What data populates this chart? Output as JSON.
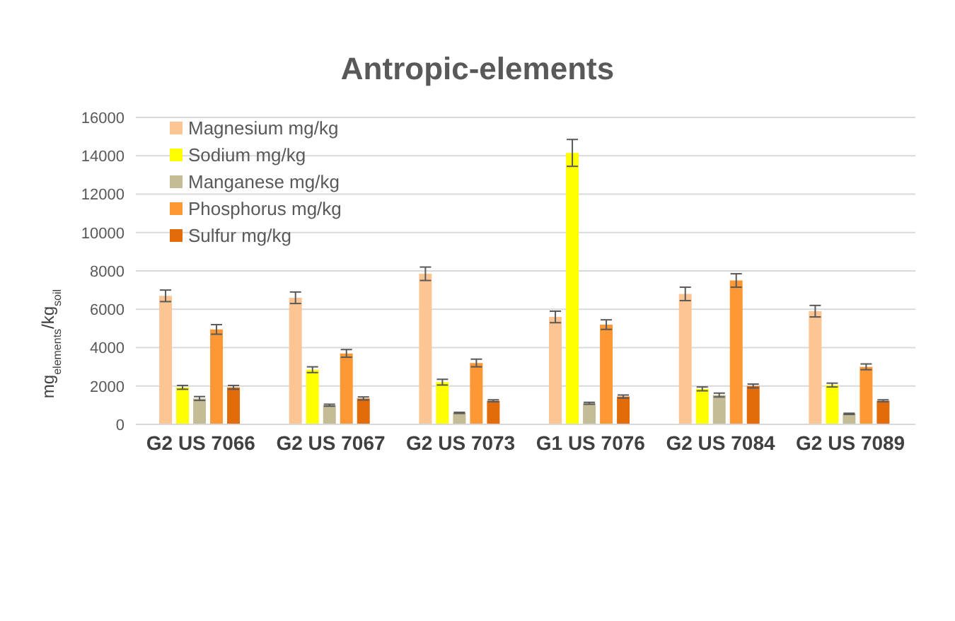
{
  "chart_data": {
    "type": "bar",
    "title": "Antropic-elements",
    "ylabel": "mg$_{elements}$/kg$_{soil}$",
    "categories": [
      "G2 US 7066",
      "G2 US 7067",
      "G2 US 7073",
      "G1 US 7076",
      "G2 US 7084",
      "G2 US 7089"
    ],
    "series": [
      {
        "name": "Magnesium mg/kg",
        "color": "#fdc593",
        "values": [
          6700,
          6600,
          7850,
          5600,
          6800,
          5900
        ],
        "errors": [
          300,
          300,
          350,
          300,
          350,
          300
        ]
      },
      {
        "name": "Sodium mg/kg",
        "color": "#ffff00",
        "values": [
          1930,
          2850,
          2200,
          14150,
          1850,
          2050
        ],
        "errors": [
          100,
          150,
          150,
          700,
          100,
          100
        ]
      },
      {
        "name": "Manganese mg/kg",
        "color": "#c4bc96",
        "values": [
          1350,
          1000,
          600,
          1100,
          1530,
          550
        ],
        "errors": [
          100,
          50,
          30,
          50,
          100,
          30
        ]
      },
      {
        "name": "Phosphorus mg/kg",
        "color": "#fd9835",
        "values": [
          4950,
          3700,
          3200,
          5200,
          7500,
          3000
        ],
        "errors": [
          250,
          200,
          200,
          250,
          350,
          150
        ]
      },
      {
        "name": "Sulfur mg/kg",
        "color": "#e36c0a",
        "values": [
          1930,
          1350,
          1230,
          1450,
          2000,
          1230
        ],
        "errors": [
          100,
          80,
          50,
          80,
          100,
          50
        ]
      }
    ],
    "ylim": [
      0,
      16000
    ],
    "yticks": [
      0,
      2000,
      4000,
      6000,
      8000,
      10000,
      12000,
      14000,
      16000
    ],
    "grid": "y",
    "legend": "top left"
  }
}
